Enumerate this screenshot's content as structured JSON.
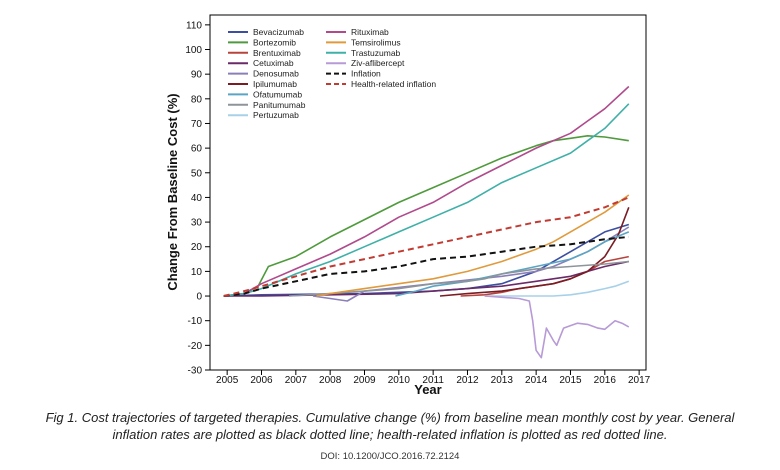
{
  "chart_data": {
    "type": "line",
    "title": "",
    "xlabel": "Year",
    "ylabel": "Change From Baseline Cost (%)",
    "xlim": [
      2004.5,
      2017.2
    ],
    "ylim": [
      -30,
      114
    ],
    "xticks": [
      2005,
      2006,
      2007,
      2008,
      2009,
      2010,
      2011,
      2012,
      2013,
      2014,
      2015,
      2016,
      2017
    ],
    "yticks": [
      -30,
      -20,
      -10,
      0,
      10,
      20,
      30,
      40,
      50,
      60,
      70,
      80,
      90,
      100,
      110
    ],
    "grid": false,
    "legend_position": "top-left",
    "series": [
      {
        "name": "Bevacizumab",
        "color": "#3b4ea0",
        "style": "solid",
        "x": [
          2004.9,
          2006.0,
          2009.0,
          2010.0,
          2011.0,
          2012.0,
          2013.0,
          2014.0,
          2015.0,
          2015.5,
          2016.0,
          2016.7
        ],
        "y": [
          0,
          0.5,
          1,
          1.5,
          2,
          3,
          5,
          10,
          18,
          22,
          26,
          29
        ]
      },
      {
        "name": "Bortezomib",
        "color": "#4f9a3c",
        "style": "solid",
        "x": [
          2004.9,
          2005.5,
          2005.9,
          2006.2,
          2007.0,
          2008.0,
          2009.0,
          2010.0,
          2011.0,
          2012.0,
          2013.0,
          2014.0,
          2014.5,
          2015.0,
          2015.5,
          2016.0,
          2016.7
        ],
        "y": [
          0,
          1,
          4,
          12,
          16,
          24,
          31,
          38,
          44,
          50,
          56,
          61,
          63,
          64,
          65,
          64.5,
          63
        ]
      },
      {
        "name": "Brentuximab",
        "color": "#b8433c",
        "style": "solid",
        "x": [
          2011.8,
          2012.5,
          2013.0,
          2013.5,
          2014.0,
          2014.5,
          2015.0,
          2015.5,
          2016.0,
          2016.7
        ],
        "y": [
          0,
          0.5,
          1.5,
          3,
          4,
          5,
          7,
          10,
          14,
          16
        ]
      },
      {
        "name": "Cetuximab",
        "color": "#6a2a68",
        "style": "solid",
        "x": [
          2004.9,
          2006.0,
          2008.0,
          2010.0,
          2011.0,
          2012.0,
          2013.0,
          2014.0,
          2015.0,
          2015.5,
          2016.0,
          2016.7
        ],
        "y": [
          0,
          0,
          0.5,
          1,
          2,
          3,
          4,
          6,
          8,
          10,
          12,
          14
        ]
      },
      {
        "name": "Denosumab",
        "color": "#8a7fb8",
        "style": "solid",
        "x": [
          2007.5,
          2008.0,
          2008.5,
          2009.0,
          2010.0,
          2011.0,
          2012.0,
          2013.0,
          2014.0,
          2014.5,
          2015.0,
          2015.5,
          2016.0,
          2016.7
        ],
        "y": [
          0,
          -1,
          -2,
          2,
          3.5,
          5,
          6.5,
          8,
          10,
          12,
          15,
          18,
          22,
          28
        ]
      },
      {
        "name": "Ipilumumab",
        "color": "#7a1c24",
        "style": "solid",
        "x": [
          2011.2,
          2012.0,
          2013.0,
          2014.0,
          2014.5,
          2015.0,
          2015.5,
          2016.0,
          2016.4,
          2016.7
        ],
        "y": [
          0,
          1,
          2,
          4,
          5,
          7,
          10,
          16,
          25,
          36
        ]
      },
      {
        "name": "Ofatumumab",
        "color": "#5aa5c4",
        "style": "solid",
        "x": [
          2009.9,
          2010.5,
          2011.0,
          2012.0,
          2013.0,
          2014.0,
          2015.0,
          2015.5,
          2016.0,
          2016.7
        ],
        "y": [
          0,
          2,
          4,
          6,
          9,
          12,
          15,
          18,
          22,
          26
        ]
      },
      {
        "name": "Panitumumab",
        "color": "#8d949a",
        "style": "solid",
        "x": [
          2006.8,
          2008.0,
          2009.0,
          2010.0,
          2011.0,
          2012.0,
          2012.5,
          2013.0,
          2013.5,
          2014.0,
          2015.0,
          2016.0,
          2016.7
        ],
        "y": [
          0,
          1,
          2,
          3,
          5,
          6,
          7,
          9,
          10,
          11,
          12,
          13,
          14
        ]
      },
      {
        "name": "Pertuzumab",
        "color": "#a7d1e8",
        "style": "solid",
        "x": [
          2012.5,
          2013.0,
          2014.0,
          2014.5,
          2015.0,
          2015.5,
          2016.0,
          2016.3,
          2016.7
        ],
        "y": [
          0,
          0,
          0,
          0,
          0.5,
          1.5,
          3,
          4,
          6
        ]
      },
      {
        "name": "Rituximab",
        "color": "#b04a8c",
        "style": "solid",
        "x": [
          2004.9,
          2005.5,
          2006.0,
          2007.0,
          2008.0,
          2009.0,
          2010.0,
          2011.0,
          2012.0,
          2013.0,
          2014.0,
          2015.0,
          2015.5,
          2016.0,
          2016.7
        ],
        "y": [
          0,
          1,
          5,
          11,
          17,
          24,
          32,
          38,
          46,
          53,
          60,
          66,
          71,
          76,
          85
        ]
      },
      {
        "name": "Temsirolimus",
        "color": "#e09a3c",
        "style": "solid",
        "x": [
          2007.6,
          2008.0,
          2009.0,
          2010.0,
          2011.0,
          2012.0,
          2013.0,
          2014.0,
          2014.5,
          2015.0,
          2015.5,
          2016.0,
          2016.7
        ],
        "y": [
          0,
          1,
          3,
          5,
          7,
          10,
          14,
          19,
          22,
          26,
          30,
          34,
          41
        ]
      },
      {
        "name": "Trastuzumab",
        "color": "#3fb0a8",
        "style": "solid",
        "x": [
          2004.9,
          2005.5,
          2006.0,
          2007.0,
          2008.0,
          2009.0,
          2010.0,
          2011.0,
          2012.0,
          2013.0,
          2014.0,
          2015.0,
          2015.5,
          2016.0,
          2016.7
        ],
        "y": [
          0,
          1,
          3,
          9,
          14,
          20,
          26,
          32,
          38,
          46,
          52,
          58,
          63,
          68,
          78
        ]
      },
      {
        "name": "Ziv-aflibercept",
        "color": "#b79ad6",
        "style": "solid",
        "x": [
          2012.5,
          2013.5,
          2013.8,
          2013.9,
          2014.0,
          2014.15,
          2014.3,
          2014.5,
          2014.6,
          2014.8,
          2015.0,
          2015.2,
          2015.5,
          2015.8,
          2016.0,
          2016.3,
          2016.5,
          2016.7
        ],
        "y": [
          0,
          -1,
          -2,
          -10,
          -22,
          -25,
          -13,
          -18,
          -20,
          -13,
          -12,
          -11,
          -11.5,
          -13,
          -13.5,
          -10,
          -11,
          -12.5
        ]
      },
      {
        "name": "Inflation",
        "color": "#111111",
        "style": "dashed",
        "x": [
          2004.9,
          2005.5,
          2006.0,
          2007.0,
          2008.0,
          2009.0,
          2010.0,
          2011.0,
          2012.0,
          2013.0,
          2014.0,
          2015.0,
          2015.5,
          2016.0,
          2016.7
        ],
        "y": [
          0,
          1,
          3,
          6,
          9,
          10,
          12,
          15,
          16,
          18,
          20,
          21,
          22,
          23,
          24
        ]
      },
      {
        "name": "Health-related inflation",
        "color": "#c23b32",
        "style": "dashed",
        "x": [
          2004.9,
          2005.5,
          2006.0,
          2007.0,
          2008.0,
          2009.0,
          2010.0,
          2011.0,
          2012.0,
          2013.0,
          2014.0,
          2015.0,
          2015.5,
          2016.0,
          2016.7
        ],
        "y": [
          0,
          2,
          4,
          8,
          12,
          15,
          18,
          21,
          24,
          27,
          30,
          32,
          34,
          36,
          40
        ]
      }
    ]
  },
  "caption": {
    "line1": "Fig 1. Cost trajectories of targeted therapies. Cumulative change (%) from baseline mean monthly cost by year. General",
    "line2": "inflation rates are plotted as black dotted line; health-related inflation is plotted as red dotted line.",
    "doi": "DOI: 10.1200/JCO.2016.72.2124"
  }
}
